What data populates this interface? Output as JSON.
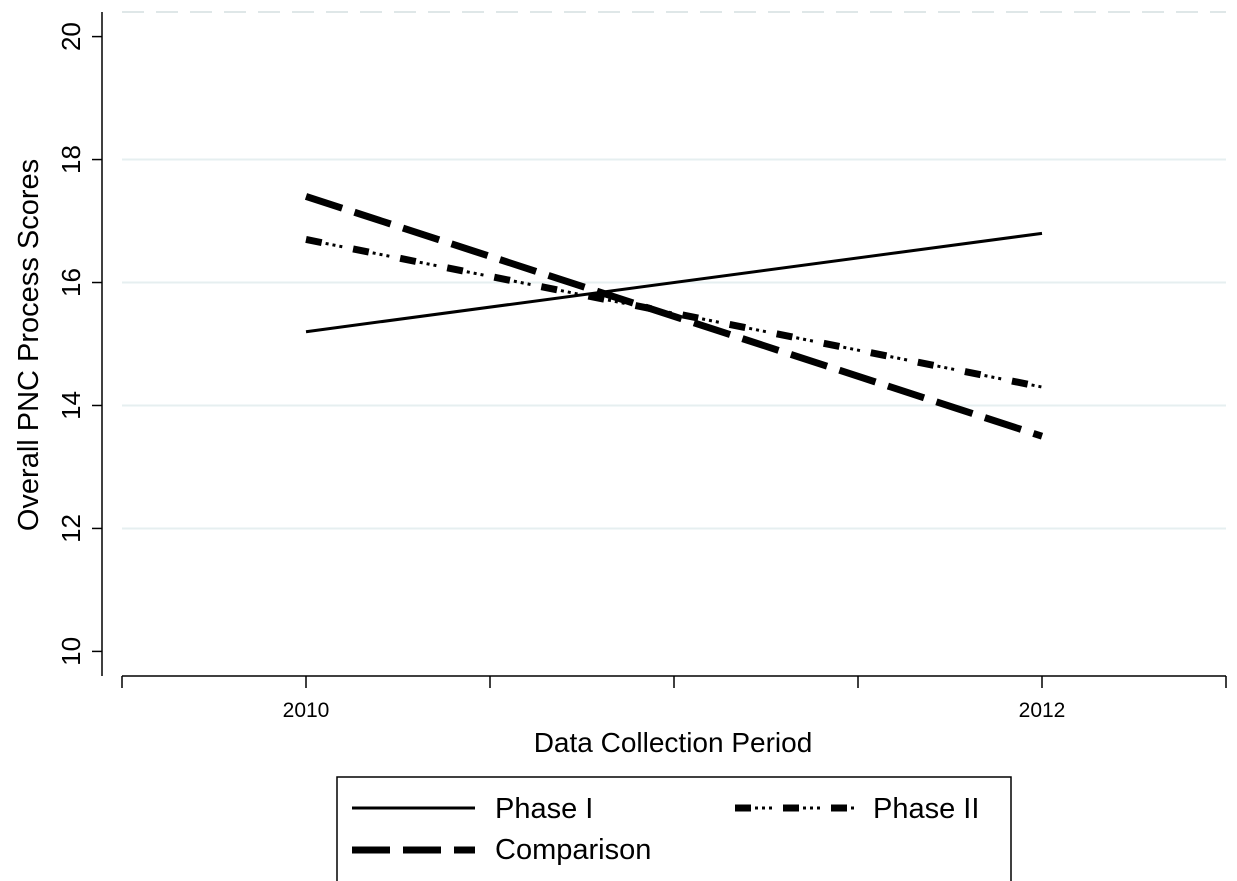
{
  "chart_data": {
    "type": "line",
    "title": "",
    "xlabel": "Data Collection Period",
    "ylabel": "Overall PNC Process Scores",
    "x": [
      2010,
      2012
    ],
    "xticks": [
      "2010",
      "2012"
    ],
    "xlim": [
      2009.5,
      2012.5
    ],
    "ylim": [
      9.6,
      20.4
    ],
    "yticks": [
      "10",
      "12",
      "14",
      "16",
      "18",
      "20"
    ],
    "grid": true,
    "legend_position": "bottom",
    "series": [
      {
        "name": "Phase I",
        "style": "solid",
        "values": [
          15.2,
          16.8
        ]
      },
      {
        "name": "Phase II",
        "style": "dash-dot",
        "values": [
          16.7,
          14.3
        ]
      },
      {
        "name": "Comparison",
        "style": "long-dash",
        "values": [
          17.4,
          13.5
        ]
      }
    ],
    "colors": {
      "line": "#000000",
      "grid": "#e6eff0",
      "background": "#ffffff"
    }
  }
}
